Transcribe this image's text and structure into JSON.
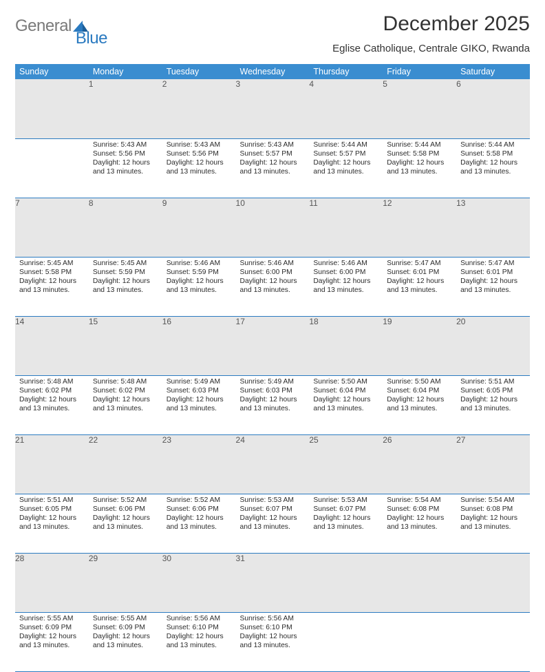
{
  "logo": {
    "word1": "General",
    "word2": "Blue"
  },
  "header": {
    "title": "December 2025",
    "location": "Eglise Catholique, Centrale GIKO, Rwanda"
  },
  "colors": {
    "header_bg": "#3a8dd0",
    "header_text": "#ffffff",
    "daynum_bg": "#e7e7e7",
    "daynum_text": "#555555",
    "cell_text": "#2b2b2b",
    "rule": "#2a7ac0",
    "logo_gray": "#7a7a7a",
    "logo_blue": "#2a7ac0",
    "logo_blue_dark": "#1c5e99",
    "page_bg": "#ffffff"
  },
  "fonts": {
    "family": "Arial",
    "title_size_pt": 22,
    "subtitle_size_pt": 11,
    "dow_size_pt": 9.5,
    "daynum_size_pt": 9,
    "cell_size_pt": 7.8
  },
  "calendar": {
    "columns": 7,
    "rows": 5,
    "days_of_week": [
      "Sunday",
      "Monday",
      "Tuesday",
      "Wednesday",
      "Thursday",
      "Friday",
      "Saturday"
    ],
    "start_offset": 1,
    "daylight_common": "Daylight: 12 hours and 13 minutes.",
    "days": [
      {
        "n": 1,
        "sr": "5:43 AM",
        "ss": "5:56 PM"
      },
      {
        "n": 2,
        "sr": "5:43 AM",
        "ss": "5:56 PM"
      },
      {
        "n": 3,
        "sr": "5:43 AM",
        "ss": "5:57 PM"
      },
      {
        "n": 4,
        "sr": "5:44 AM",
        "ss": "5:57 PM"
      },
      {
        "n": 5,
        "sr": "5:44 AM",
        "ss": "5:58 PM"
      },
      {
        "n": 6,
        "sr": "5:44 AM",
        "ss": "5:58 PM"
      },
      {
        "n": 7,
        "sr": "5:45 AM",
        "ss": "5:58 PM"
      },
      {
        "n": 8,
        "sr": "5:45 AM",
        "ss": "5:59 PM"
      },
      {
        "n": 9,
        "sr": "5:46 AM",
        "ss": "5:59 PM"
      },
      {
        "n": 10,
        "sr": "5:46 AM",
        "ss": "6:00 PM"
      },
      {
        "n": 11,
        "sr": "5:46 AM",
        "ss": "6:00 PM"
      },
      {
        "n": 12,
        "sr": "5:47 AM",
        "ss": "6:01 PM"
      },
      {
        "n": 13,
        "sr": "5:47 AM",
        "ss": "6:01 PM"
      },
      {
        "n": 14,
        "sr": "5:48 AM",
        "ss": "6:02 PM"
      },
      {
        "n": 15,
        "sr": "5:48 AM",
        "ss": "6:02 PM"
      },
      {
        "n": 16,
        "sr": "5:49 AM",
        "ss": "6:03 PM"
      },
      {
        "n": 17,
        "sr": "5:49 AM",
        "ss": "6:03 PM"
      },
      {
        "n": 18,
        "sr": "5:50 AM",
        "ss": "6:04 PM"
      },
      {
        "n": 19,
        "sr": "5:50 AM",
        "ss": "6:04 PM"
      },
      {
        "n": 20,
        "sr": "5:51 AM",
        "ss": "6:05 PM"
      },
      {
        "n": 21,
        "sr": "5:51 AM",
        "ss": "6:05 PM"
      },
      {
        "n": 22,
        "sr": "5:52 AM",
        "ss": "6:06 PM"
      },
      {
        "n": 23,
        "sr": "5:52 AM",
        "ss": "6:06 PM"
      },
      {
        "n": 24,
        "sr": "5:53 AM",
        "ss": "6:07 PM"
      },
      {
        "n": 25,
        "sr": "5:53 AM",
        "ss": "6:07 PM"
      },
      {
        "n": 26,
        "sr": "5:54 AM",
        "ss": "6:08 PM"
      },
      {
        "n": 27,
        "sr": "5:54 AM",
        "ss": "6:08 PM"
      },
      {
        "n": 28,
        "sr": "5:55 AM",
        "ss": "6:09 PM"
      },
      {
        "n": 29,
        "sr": "5:55 AM",
        "ss": "6:09 PM"
      },
      {
        "n": 30,
        "sr": "5:56 AM",
        "ss": "6:10 PM"
      },
      {
        "n": 31,
        "sr": "5:56 AM",
        "ss": "6:10 PM"
      }
    ],
    "labels": {
      "sunrise": "Sunrise:",
      "sunset": "Sunset:"
    }
  }
}
